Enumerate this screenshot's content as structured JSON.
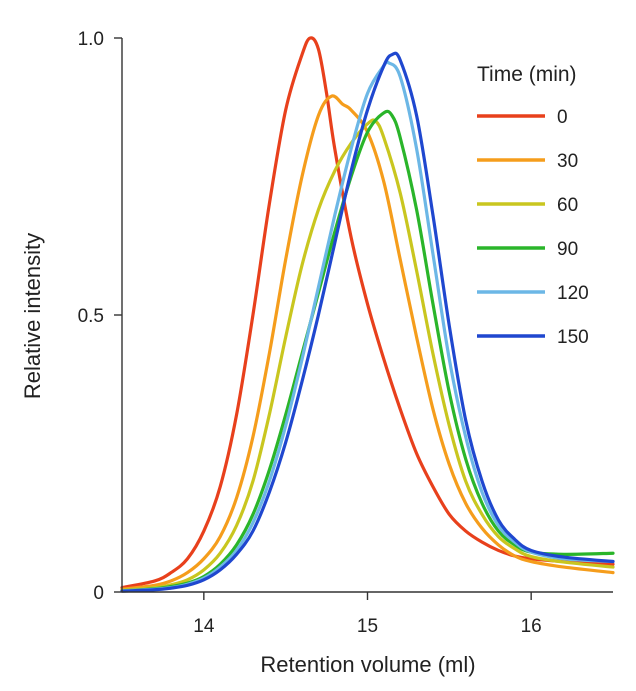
{
  "chart_data": {
    "type": "line",
    "title": "",
    "xlabel": "Retention volume (ml)",
    "ylabel": "Relative intensity",
    "xlim": [
      13.5,
      16.5
    ],
    "ylim": [
      0,
      1.0
    ],
    "x_ticks": [
      {
        "value": 14,
        "label": "14"
      },
      {
        "value": 15,
        "label": "15"
      },
      {
        "value": 16,
        "label": "16"
      }
    ],
    "y_ticks": [
      {
        "value": 0,
        "label": "0"
      },
      {
        "value": 0.5,
        "label": "0.5"
      },
      {
        "value": 1.0,
        "label": "1.0"
      }
    ],
    "legend": {
      "title": "Time (min)",
      "placement": "top-right"
    },
    "series": [
      {
        "name": "0",
        "color": "#e8401c",
        "x": [
          13.5,
          13.7,
          13.8,
          13.9,
          14.0,
          14.1,
          14.2,
          14.3,
          14.4,
          14.5,
          14.6,
          14.65,
          14.7,
          14.75,
          14.8,
          14.9,
          15.0,
          15.1,
          15.2,
          15.3,
          15.4,
          15.5,
          15.6,
          15.7,
          15.8,
          15.9,
          16.0,
          16.2,
          16.5
        ],
        "y": [
          0.008,
          0.02,
          0.035,
          0.06,
          0.11,
          0.19,
          0.32,
          0.5,
          0.7,
          0.87,
          0.97,
          1.0,
          0.98,
          0.9,
          0.8,
          0.64,
          0.52,
          0.42,
          0.33,
          0.25,
          0.19,
          0.14,
          0.11,
          0.09,
          0.075,
          0.065,
          0.06,
          0.055,
          0.05
        ]
      },
      {
        "name": "30",
        "color": "#f59d1c",
        "x": [
          13.5,
          13.7,
          13.8,
          13.9,
          14.0,
          14.1,
          14.2,
          14.3,
          14.4,
          14.5,
          14.6,
          14.7,
          14.78,
          14.85,
          14.9,
          15.0,
          15.1,
          15.2,
          15.3,
          15.4,
          15.5,
          15.6,
          15.7,
          15.8,
          15.9,
          16.0,
          16.2,
          16.5
        ],
        "y": [
          0.005,
          0.012,
          0.02,
          0.035,
          0.06,
          0.1,
          0.17,
          0.28,
          0.43,
          0.6,
          0.75,
          0.86,
          0.895,
          0.88,
          0.87,
          0.83,
          0.74,
          0.6,
          0.46,
          0.33,
          0.23,
          0.16,
          0.115,
          0.085,
          0.065,
          0.055,
          0.045,
          0.035
        ]
      },
      {
        "name": "60",
        "color": "#c9c61f",
        "x": [
          13.5,
          13.7,
          13.8,
          13.9,
          14.0,
          14.1,
          14.2,
          14.3,
          14.4,
          14.5,
          14.6,
          14.7,
          14.8,
          14.9,
          15.0,
          15.05,
          15.1,
          15.2,
          15.3,
          15.4,
          15.5,
          15.6,
          15.7,
          15.8,
          15.9,
          16.0,
          16.2,
          16.5
        ],
        "y": [
          0.003,
          0.008,
          0.013,
          0.022,
          0.04,
          0.07,
          0.12,
          0.2,
          0.32,
          0.46,
          0.59,
          0.69,
          0.76,
          0.81,
          0.845,
          0.85,
          0.82,
          0.72,
          0.58,
          0.43,
          0.3,
          0.2,
          0.14,
          0.1,
          0.078,
          0.064,
          0.054,
          0.045
        ]
      },
      {
        "name": "90",
        "color": "#2ab52a",
        "x": [
          13.5,
          13.7,
          13.8,
          13.9,
          14.0,
          14.1,
          14.2,
          14.3,
          14.4,
          14.5,
          14.6,
          14.7,
          14.8,
          14.9,
          15.0,
          15.1,
          15.15,
          15.2,
          15.3,
          15.4,
          15.5,
          15.6,
          15.7,
          15.8,
          15.9,
          16.0,
          16.2,
          16.5
        ],
        "y": [
          0.002,
          0.006,
          0.01,
          0.016,
          0.028,
          0.05,
          0.085,
          0.14,
          0.22,
          0.32,
          0.43,
          0.54,
          0.65,
          0.75,
          0.83,
          0.865,
          0.86,
          0.82,
          0.69,
          0.52,
          0.36,
          0.24,
          0.16,
          0.11,
          0.085,
          0.072,
          0.068,
          0.07
        ]
      },
      {
        "name": "120",
        "color": "#6cb7e6",
        "x": [
          13.5,
          13.7,
          13.8,
          13.9,
          14.0,
          14.1,
          14.2,
          14.3,
          14.4,
          14.5,
          14.6,
          14.7,
          14.8,
          14.9,
          15.0,
          15.1,
          15.13,
          15.2,
          15.3,
          15.4,
          15.5,
          15.6,
          15.7,
          15.8,
          15.9,
          16.0,
          16.2,
          16.5
        ],
        "y": [
          0.002,
          0.005,
          0.008,
          0.014,
          0.025,
          0.045,
          0.075,
          0.125,
          0.2,
          0.3,
          0.42,
          0.55,
          0.68,
          0.8,
          0.9,
          0.95,
          0.955,
          0.93,
          0.8,
          0.61,
          0.42,
          0.28,
          0.18,
          0.12,
          0.09,
          0.072,
          0.06,
          0.055
        ]
      },
      {
        "name": "150",
        "color": "#1f47cf",
        "x": [
          13.5,
          13.7,
          13.8,
          13.9,
          14.0,
          14.1,
          14.2,
          14.3,
          14.4,
          14.5,
          14.6,
          14.7,
          14.8,
          14.9,
          15.0,
          15.1,
          15.15,
          15.2,
          15.3,
          15.4,
          15.5,
          15.6,
          15.7,
          15.8,
          15.9,
          16.0,
          16.2,
          16.5
        ],
        "y": [
          0.0015,
          0.004,
          0.007,
          0.012,
          0.022,
          0.04,
          0.068,
          0.11,
          0.18,
          0.27,
          0.38,
          0.5,
          0.63,
          0.76,
          0.87,
          0.95,
          0.97,
          0.96,
          0.86,
          0.68,
          0.48,
          0.31,
          0.2,
          0.13,
          0.095,
          0.075,
          0.063,
          0.055
        ]
      }
    ]
  }
}
